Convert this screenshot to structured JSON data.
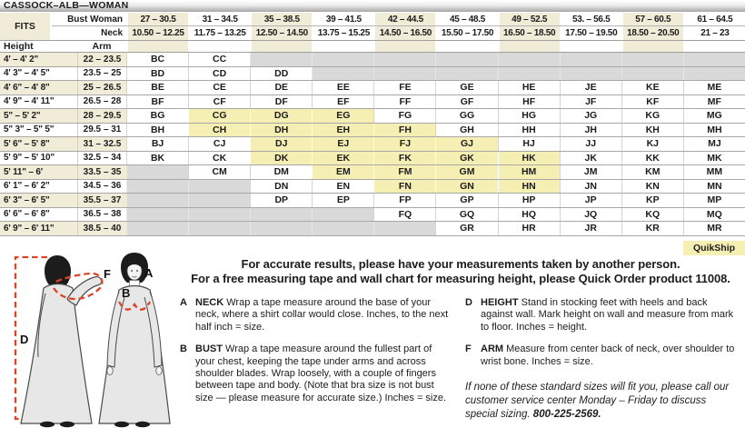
{
  "title": "CASSOCK–ALB—WOMAN",
  "size_table": {
    "fits_label": "FITS",
    "bust_label": "Bust Woman",
    "neck_label": "Neck",
    "height_label": "Height",
    "arm_label": "Arm",
    "quikship_label": "QuikShip",
    "bust_ranges": [
      "27 – 30.5",
      "31 – 34.5",
      "35 – 38.5",
      "39 – 41.5",
      "42 – 44.5",
      "45 – 48.5",
      "49 – 52.5",
      "53. – 56.5",
      "57 – 60.5",
      "61 – 64.5"
    ],
    "neck_ranges": [
      "10.50 – 12.25",
      "11.75 – 13.25",
      "12.50 – 14.50",
      "13.75 – 15.25",
      "14.50 – 16.50",
      "15.50 – 17.50",
      "16.50 – 18.50",
      "17.50 – 19.50",
      "18.50 – 20.50",
      "21 – 23"
    ],
    "rows": [
      {
        "height": "4' – 4' 2\"",
        "arm": "22 – 23.5",
        "cells": [
          "BC",
          "CC",
          "",
          "",
          "",
          "",
          "",
          "",
          "",
          ""
        ]
      },
      {
        "height": "4' 3\" – 4' 5\"",
        "arm": "23.5 – 25",
        "cells": [
          "BD",
          "CD",
          "DD",
          "",
          "",
          "",
          "",
          "",
          "",
          ""
        ]
      },
      {
        "height": "4' 6\" – 4' 8\"",
        "arm": "25 – 26.5",
        "cells": [
          "BE",
          "CE",
          "DE",
          "EE",
          "FE",
          "GE",
          "HE",
          "JE",
          "KE",
          "ME"
        ]
      },
      {
        "height": "4' 9\" – 4' 11\"",
        "arm": "26.5 – 28",
        "cells": [
          "BF",
          "CF",
          "DF",
          "EF",
          "FF",
          "GF",
          "HF",
          "JF",
          "KF",
          "MF"
        ]
      },
      {
        "height": "5\" – 5' 2\"",
        "arm": "28 – 29.5",
        "cells": [
          "BG",
          "!CG",
          "!DG",
          "!EG",
          "FG",
          "GG",
          "HG",
          "JG",
          "KG",
          "MG"
        ]
      },
      {
        "height": "5\" 3\" – 5\" 5\"",
        "arm": "29.5 – 31",
        "cells": [
          "BH",
          "!CH",
          "!DH",
          "!EH",
          "!FH",
          "GH",
          "HH",
          "JH",
          "KH",
          "MH"
        ]
      },
      {
        "height": "5' 6\" – 5' 8\"",
        "arm": "31 – 32.5",
        "cells": [
          "BJ",
          "CJ",
          "!DJ",
          "!EJ",
          "!FJ",
          "!GJ",
          "HJ",
          "JJ",
          "KJ",
          "MJ"
        ]
      },
      {
        "height": "5' 9\" – 5' 10\"",
        "arm": "32.5 – 34",
        "cells": [
          "BK",
          "CK",
          "!DK",
          "!EK",
          "!FK",
          "!GK",
          "!HK",
          "JK",
          "KK",
          "MK"
        ]
      },
      {
        "height": "5' 11\" – 6'",
        "arm": "33.5 – 35",
        "cells": [
          "",
          "CM",
          "DM",
          "!EM",
          "!FM",
          "!GM",
          "!HM",
          "JM",
          "KM",
          "MM"
        ]
      },
      {
        "height": "6' 1\" – 6' 2\"",
        "arm": "34.5 – 36",
        "cells": [
          "",
          "",
          "DN",
          "EN",
          "!FN",
          "!GN",
          "!HN",
          "JN",
          "KN",
          "MN"
        ]
      },
      {
        "height": "6' 3\" – 6' 5\"",
        "arm": "35.5 – 37",
        "cells": [
          "",
          "",
          "DP",
          "EP",
          "FP",
          "GP",
          "HP",
          "JP",
          "KP",
          "MP"
        ]
      },
      {
        "height": "6' 6\" – 6' 8\"",
        "arm": "36.5 – 38",
        "cells": [
          "",
          "",
          "",
          "",
          "FQ",
          "GQ",
          "HQ",
          "JQ",
          "KQ",
          "MQ"
        ]
      },
      {
        "height": "6' 9\" – 6' 11\"",
        "arm": "38.5 – 40",
        "cells": [
          "",
          "",
          "",
          "",
          "",
          "GR",
          "HR",
          "JR",
          "KR",
          "MR"
        ]
      }
    ]
  },
  "figure": {
    "labels": {
      "neck": "A",
      "bust": "B",
      "height": "D",
      "arm": "F"
    }
  },
  "intro": {
    "line1": "For accurate results, please have your measurements taken by another person.",
    "line2": "For a free measuring tape and wall chart for measuring height, please Quick Order product 11008."
  },
  "instructions": [
    {
      "letter": "A",
      "term": "NECK",
      "text": "Wrap a tape measure around the base of your neck, where a shirt collar would close. Inches, to the next half inch = size."
    },
    {
      "letter": "B",
      "term": "BUST",
      "text": "Wrap a tape measure around the fullest part of your chest, keeping the tape under arms and across shoulder blades. Wrap loosely, with a couple of fingers between tape and body. (Note that bra size is not bust size — please measure for accurate size.) Inches = size."
    },
    {
      "letter": "D",
      "term": "HEIGHT",
      "text": "Stand in stocking feet with heels and back against wall. Mark height on wall and measure from mark to floor. Inches = height."
    },
    {
      "letter": "F",
      "term": "ARM",
      "text": "Measure from center back of neck, over shoulder to wrist bone. Inches = size."
    }
  ],
  "special_sizing_note": {
    "text": "If none of these standard sizes will fit you, please call our customer service center Monday – Friday to discuss special sizing. ",
    "phone": "800-225-2569."
  },
  "colors": {
    "cream": "#f1ecd8",
    "highlight": "#f6efb4",
    "gray_na": "#d9d9d9",
    "accent_red": "#dd4327"
  }
}
